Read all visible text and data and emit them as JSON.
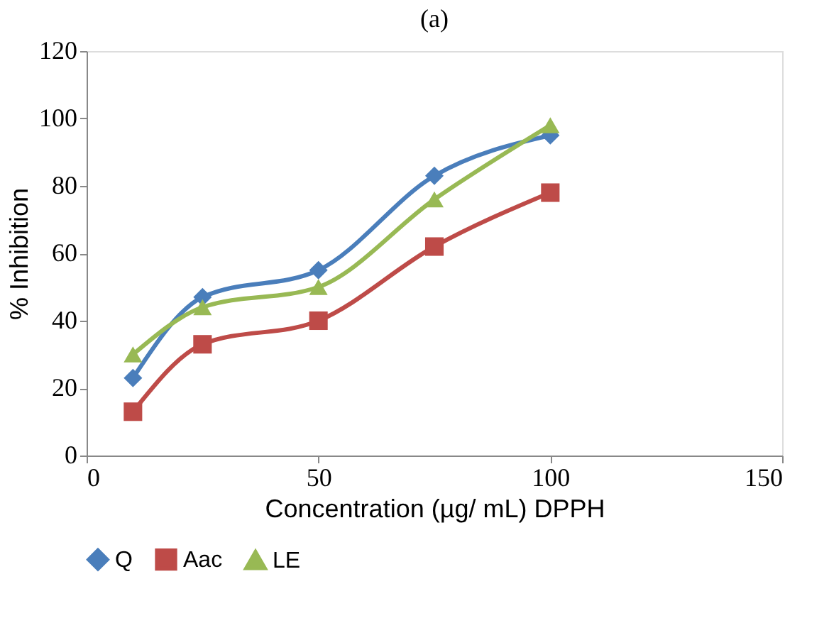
{
  "chart_data": {
    "type": "line",
    "title": "(a)",
    "xlabel": "Concentration (µg/ mL) DPPH",
    "ylabel": "% Inhibition",
    "x": [
      10,
      25,
      50,
      75,
      100
    ],
    "series": [
      {
        "name": "Q",
        "color": "#4a7ebb",
        "marker": "diamond",
        "values": [
          23,
          47,
          55,
          83,
          95
        ]
      },
      {
        "name": "Aac",
        "color": "#be4b48",
        "marker": "square",
        "values": [
          13,
          33,
          40,
          62,
          78
        ]
      },
      {
        "name": "LE",
        "color": "#98b954",
        "marker": "triangle",
        "values": [
          30,
          44,
          50,
          76,
          98
        ]
      }
    ],
    "xlim": [
      0,
      150
    ],
    "xticks": [
      0,
      50,
      100,
      150
    ],
    "ylim": [
      0,
      120
    ],
    "yticks": [
      0,
      20,
      40,
      60,
      80,
      100,
      120
    ],
    "grid": false,
    "legend": "bottom",
    "line_style": "solid"
  }
}
